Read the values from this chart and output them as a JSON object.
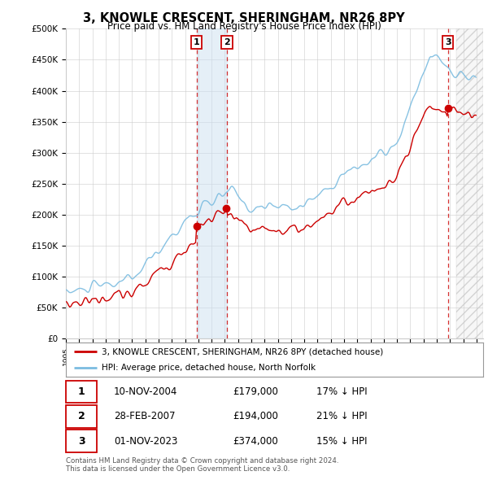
{
  "title": "3, KNOWLE CRESCENT, SHERINGHAM, NR26 8PY",
  "subtitle": "Price paid vs. HM Land Registry's House Price Index (HPI)",
  "ylabel_ticks": [
    "£0",
    "£50K",
    "£100K",
    "£150K",
    "£200K",
    "£250K",
    "£300K",
    "£350K",
    "£400K",
    "£450K",
    "£500K"
  ],
  "ytick_values": [
    0,
    50000,
    100000,
    150000,
    200000,
    250000,
    300000,
    350000,
    400000,
    450000,
    500000
  ],
  "xlim_start": 1995.0,
  "xlim_end": 2026.5,
  "ylim": [
    0,
    500000
  ],
  "legend_line1": "3, KNOWLE CRESCENT, SHERINGHAM, NR26 8PY (detached house)",
  "legend_line2": "HPI: Average price, detached house, North Norfolk",
  "t1_year": 2004.87,
  "t2_year": 2007.16,
  "t3_year": 2023.84,
  "t1_price": 179000,
  "t2_price": 194000,
  "t3_price": 374000,
  "transaction1_date": "10-NOV-2004",
  "transaction1_price": 179000,
  "transaction1_hpi": "17% ↓ HPI",
  "transaction2_date": "28-FEB-2007",
  "transaction2_price": 194000,
  "transaction2_hpi": "21% ↓ HPI",
  "transaction3_date": "01-NOV-2023",
  "transaction3_price": 374000,
  "transaction3_hpi": "15% ↓ HPI",
  "footer1": "Contains HM Land Registry data © Crown copyright and database right 2024.",
  "footer2": "This data is licensed under the Open Government Licence v3.0.",
  "hpi_color": "#7bbce0",
  "price_color": "#cc0000",
  "marker_box_color": "#cc0000",
  "highlight_color": "#cce0f0",
  "background_color": "#ffffff",
  "grid_color": "#cccccc"
}
